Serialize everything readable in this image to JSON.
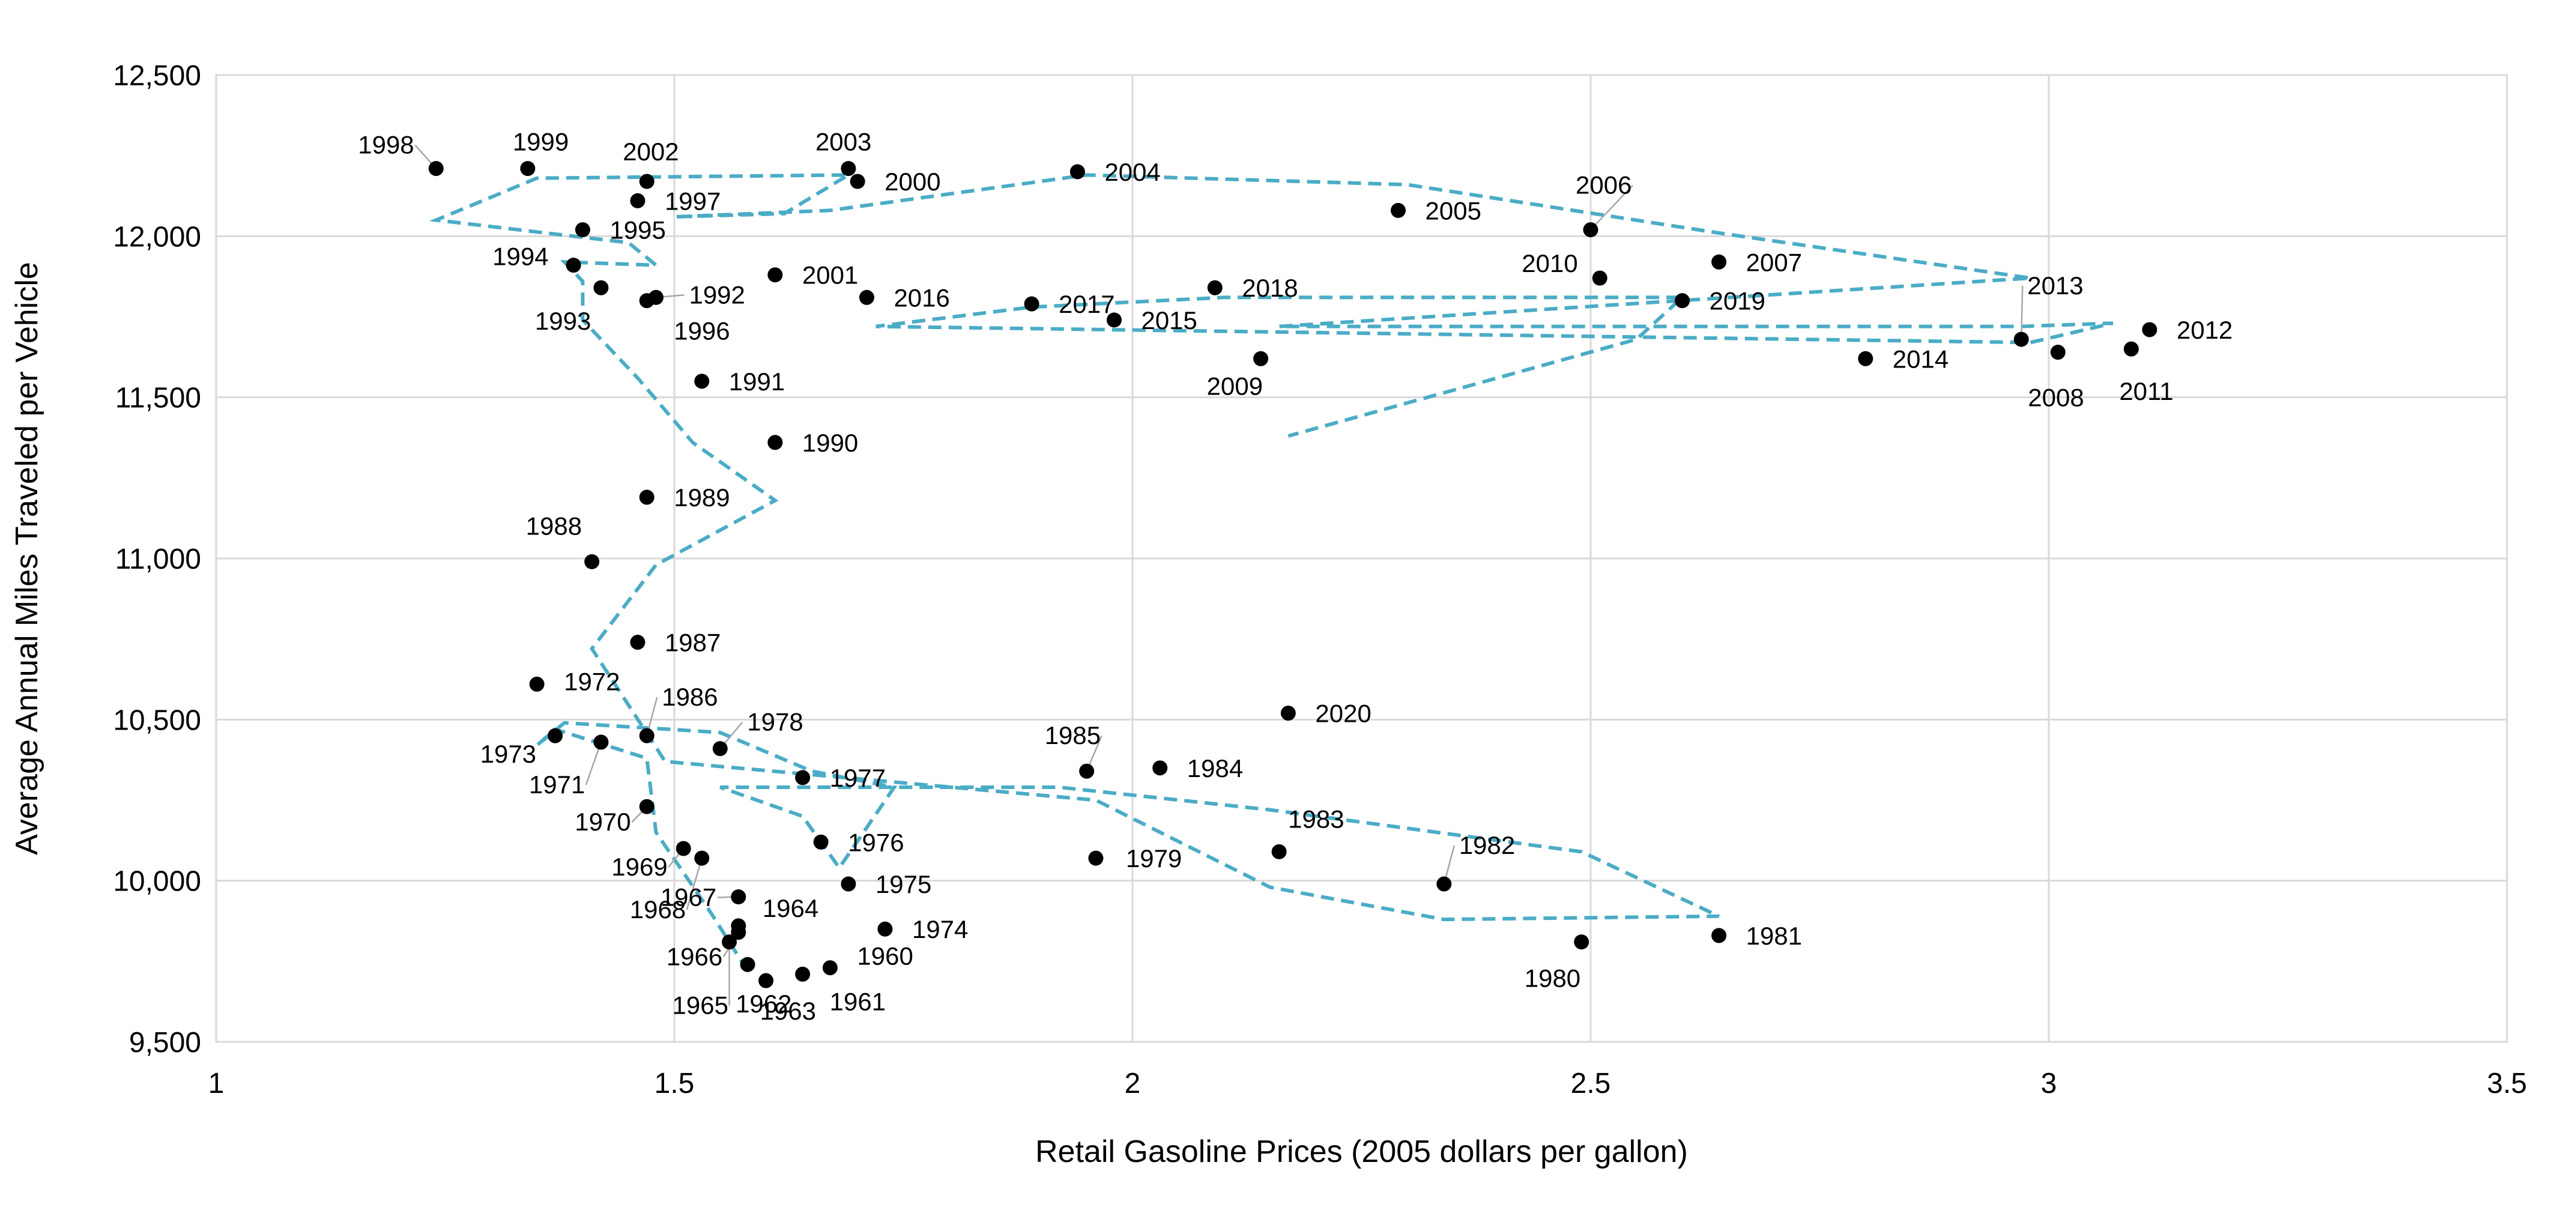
{
  "chart_data": {
    "type": "scatter",
    "title": "",
    "xlabel": "Retail Gasoline Prices (2005 dollars per gallon)",
    "ylabel": "Average Annual Miles Traveled per Vehicle",
    "xlim": [
      1,
      3.5
    ],
    "ylim": [
      9500,
      12500
    ],
    "x_ticks": [
      1,
      1.5,
      2,
      2.5,
      3,
      3.5
    ],
    "x_tick_labels": [
      "1",
      "1.5",
      "2",
      "2.5",
      "3",
      "3.5"
    ],
    "y_ticks": [
      9500,
      10000,
      10500,
      11000,
      11500,
      12000,
      12500
    ],
    "y_tick_labels": [
      "9,500",
      "10,000",
      "10,500",
      "11,000",
      "11,500",
      "12,000",
      "12,500"
    ],
    "grid": true,
    "legend": "none",
    "marker_color": "#000000",
    "trend_line_color": "#4bacc6",
    "points": [
      {
        "year": "1960",
        "x": 1.67,
        "y": 9730
      },
      {
        "year": "1961",
        "x": 1.64,
        "y": 9710
      },
      {
        "year": "1962",
        "x": 1.58,
        "y": 9740
      },
      {
        "year": "1963",
        "x": 1.6,
        "y": 9690
      },
      {
        "year": "1964",
        "x": 1.57,
        "y": 9860
      },
      {
        "year": "1965",
        "x": 1.56,
        "y": 9810
      },
      {
        "year": "1966",
        "x": 1.57,
        "y": 9840
      },
      {
        "year": "1967",
        "x": 1.57,
        "y": 9950
      },
      {
        "year": "1968",
        "x": 1.53,
        "y": 10070
      },
      {
        "year": "1969",
        "x": 1.51,
        "y": 10100
      },
      {
        "year": "1970",
        "x": 1.47,
        "y": 10230
      },
      {
        "year": "1971",
        "x": 1.42,
        "y": 10430
      },
      {
        "year": "1972",
        "x": 1.35,
        "y": 10610
      },
      {
        "year": "1973",
        "x": 1.37,
        "y": 10450
      },
      {
        "year": "1974",
        "x": 1.73,
        "y": 9850
      },
      {
        "year": "1975",
        "x": 1.69,
        "y": 9990
      },
      {
        "year": "1976",
        "x": 1.66,
        "y": 10120
      },
      {
        "year": "1977",
        "x": 1.64,
        "y": 10320
      },
      {
        "year": "1978",
        "x": 1.55,
        "y": 10410
      },
      {
        "year": "1979",
        "x": 1.96,
        "y": 10070
      },
      {
        "year": "1980",
        "x": 2.49,
        "y": 9810
      },
      {
        "year": "1981",
        "x": 2.64,
        "y": 9830
      },
      {
        "year": "1982",
        "x": 2.34,
        "y": 9990
      },
      {
        "year": "1983",
        "x": 2.16,
        "y": 10090
      },
      {
        "year": "1984",
        "x": 2.03,
        "y": 10350
      },
      {
        "year": "1985",
        "x": 1.95,
        "y": 10340
      },
      {
        "year": "1986",
        "x": 1.47,
        "y": 10450
      },
      {
        "year": "1987",
        "x": 1.46,
        "y": 10740
      },
      {
        "year": "1988",
        "x": 1.41,
        "y": 10990
      },
      {
        "year": "1989",
        "x": 1.47,
        "y": 11190
      },
      {
        "year": "1990",
        "x": 1.61,
        "y": 11360
      },
      {
        "year": "1991",
        "x": 1.53,
        "y": 11550
      },
      {
        "year": "1992",
        "x": 1.48,
        "y": 11810
      },
      {
        "year": "1993",
        "x": 1.42,
        "y": 11840
      },
      {
        "year": "1994",
        "x": 1.39,
        "y": 11910
      },
      {
        "year": "1995",
        "x": 1.4,
        "y": 12020
      },
      {
        "year": "1996",
        "x": 1.47,
        "y": 11800
      },
      {
        "year": "1997",
        "x": 1.46,
        "y": 12110
      },
      {
        "year": "1998",
        "x": 1.24,
        "y": 12210
      },
      {
        "year": "1999",
        "x": 1.34,
        "y": 12210
      },
      {
        "year": "2000",
        "x": 1.7,
        "y": 12170
      },
      {
        "year": "2001",
        "x": 1.61,
        "y": 11880
      },
      {
        "year": "2002",
        "x": 1.47,
        "y": 12170
      },
      {
        "year": "2003",
        "x": 1.69,
        "y": 12210
      },
      {
        "year": "2004",
        "x": 1.94,
        "y": 12200
      },
      {
        "year": "2005",
        "x": 2.29,
        "y": 12080
      },
      {
        "year": "2006",
        "x": 2.5,
        "y": 12020
      },
      {
        "year": "2007",
        "x": 2.64,
        "y": 11920
      },
      {
        "year": "2008",
        "x": 3.01,
        "y": 11640
      },
      {
        "year": "2009",
        "x": 2.14,
        "y": 11620
      },
      {
        "year": "2010",
        "x": 2.51,
        "y": 11870
      },
      {
        "year": "2011",
        "x": 3.09,
        "y": 11650
      },
      {
        "year": "2012",
        "x": 3.11,
        "y": 11710
      },
      {
        "year": "2013",
        "x": 2.97,
        "y": 11680
      },
      {
        "year": "2014",
        "x": 2.8,
        "y": 11620
      },
      {
        "year": "2015",
        "x": 1.98,
        "y": 11740
      },
      {
        "year": "2016",
        "x": 1.71,
        "y": 11810
      },
      {
        "year": "2017",
        "x": 1.89,
        "y": 11790
      },
      {
        "year": "2018",
        "x": 2.09,
        "y": 11840
      },
      {
        "year": "2019",
        "x": 2.6,
        "y": 11800
      },
      {
        "year": "2020",
        "x": 2.17,
        "y": 10520
      }
    ],
    "trend_line": [
      [
        1.58,
        9720
      ],
      [
        1.54,
        9900
      ],
      [
        1.48,
        10150
      ],
      [
        1.47,
        10380
      ],
      [
        1.37,
        10470
      ],
      [
        1.35,
        10420
      ],
      [
        1.38,
        10490
      ],
      [
        1.55,
        10460
      ],
      [
        1.65,
        10340
      ],
      [
        1.74,
        10290
      ],
      [
        1.68,
        10040
      ],
      [
        1.64,
        10200
      ],
      [
        1.55,
        10290
      ],
      [
        1.92,
        10290
      ],
      [
        2.15,
        10220
      ],
      [
        2.49,
        10090
      ],
      [
        2.64,
        9890
      ],
      [
        2.34,
        9880
      ],
      [
        2.15,
        9980
      ],
      [
        1.96,
        10250
      ],
      [
        1.49,
        10370
      ],
      [
        1.41,
        10720
      ],
      [
        1.48,
        10980
      ],
      [
        1.61,
        11180
      ],
      [
        1.52,
        11360
      ],
      [
        1.46,
        11560
      ],
      [
        1.4,
        11740
      ],
      [
        1.4,
        11860
      ],
      [
        1.38,
        11920
      ],
      [
        1.48,
        11910
      ],
      [
        1.45,
        11980
      ],
      [
        1.24,
        12050
      ],
      [
        1.35,
        12180
      ],
      [
        1.69,
        12190
      ],
      [
        1.62,
        12070
      ],
      [
        1.5,
        12060
      ],
      [
        1.67,
        12080
      ],
      [
        1.95,
        12190
      ],
      [
        2.3,
        12160
      ],
      [
        2.64,
        12010
      ],
      [
        2.98,
        11870
      ],
      [
        2.16,
        11720
      ],
      [
        2.97,
        11720
      ],
      [
        3.07,
        11730
      ],
      [
        2.98,
        11670
      ],
      [
        1.72,
        11720
      ],
      [
        1.89,
        11780
      ],
      [
        2.1,
        11810
      ],
      [
        2.6,
        11810
      ],
      [
        2.55,
        11680
      ],
      [
        2.17,
        11380
      ]
    ]
  }
}
